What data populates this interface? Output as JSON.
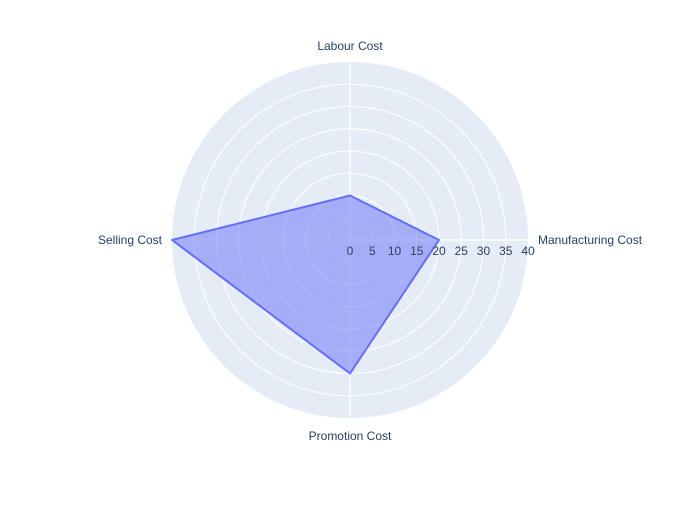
{
  "chart_data": {
    "type": "radar",
    "categories": [
      "Manufacturing Cost",
      "Labour Cost",
      "Selling Cost",
      "Promotion Cost"
    ],
    "series": [
      {
        "values": [
          20,
          10,
          40,
          30
        ]
      }
    ],
    "radial_range": [
      0,
      40
    ],
    "radial_ticks": [
      0,
      5,
      10,
      15,
      20,
      25,
      30,
      35,
      40
    ],
    "fill": true,
    "grid": true,
    "legend": "none",
    "colors": {
      "polar_background": "#e5ecf6",
      "grid": "#ffffff",
      "series_line": "#636efa",
      "series_fill": "#636efa",
      "text": "#2a3f5f"
    }
  }
}
